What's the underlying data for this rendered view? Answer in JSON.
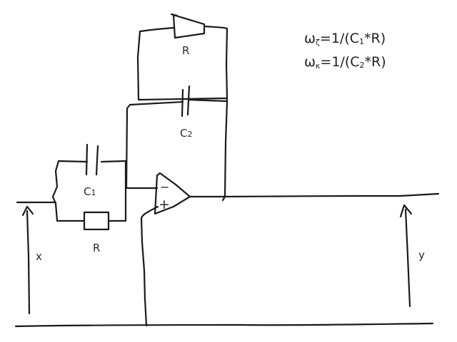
{
  "formulas": {
    "line1": {
      "prefix": "ω",
      "prefix_sub": "ζ",
      "mid": "=1/(C",
      "mid_sub": "1",
      "suffix": "*R)"
    },
    "line2": {
      "prefix": "ω",
      "prefix_sub": "κ",
      "mid": "=1/(C",
      "mid_sub": "2",
      "suffix": "*R)"
    }
  },
  "labels": {
    "r_top": "R",
    "r_bottom": "R",
    "c1_main": "C",
    "c1_sub": "1",
    "c2_main": "C",
    "c2_sub": "2",
    "input": "x",
    "output": "y",
    "opamp_minus": "−",
    "opamp_plus": "+"
  },
  "colors": {
    "ink": "#1a1a1a",
    "background": "#ffffff"
  }
}
